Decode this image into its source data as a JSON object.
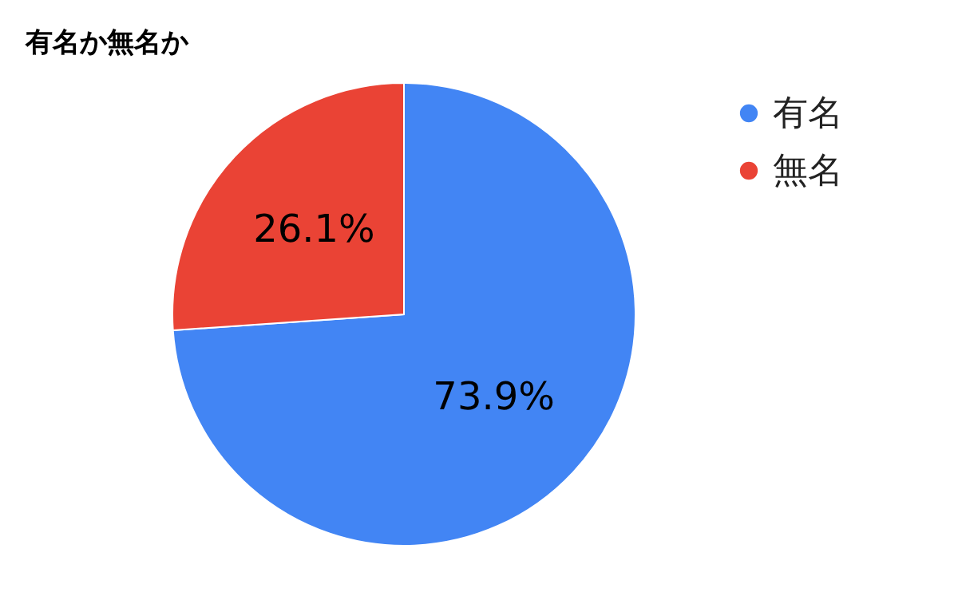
{
  "chart_data": {
    "type": "pie",
    "title": "有名か無名か",
    "categories": [
      "有名",
      "無名"
    ],
    "values": [
      73.9,
      26.1
    ],
    "colors": [
      "#4285f4",
      "#ea4335"
    ],
    "value_labels": [
      "73.9%",
      "26.1%"
    ],
    "legend": "top right"
  }
}
